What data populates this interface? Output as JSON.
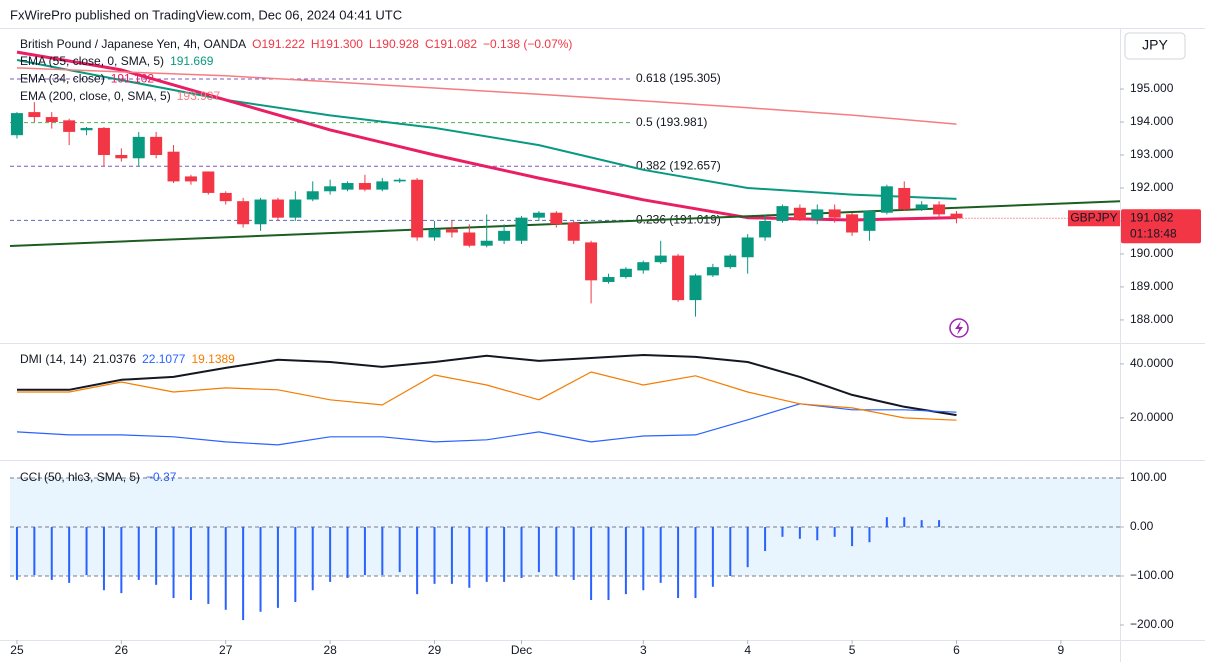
{
  "header": "FxWirePro published on TradingView.com, Dec 06, 2024 04:41 UTC",
  "chart_data": [
    {
      "type": "candlestick",
      "title": "British Pound / Japanese Yen, 4h, OANDA",
      "legend_ohlc": [
        "O191.222",
        "H191.300",
        "L190.928",
        "C191.082",
        "−0.138 (−0.07%)"
      ],
      "currency": "JPY",
      "symbol_tag": "GBPJPY",
      "price_tag": "191.082",
      "countdown": "01:18:48",
      "up_color": "#089981",
      "down_color": "#f23645",
      "xlim": [
        -0.4,
        63.4
      ],
      "ylim": [
        187.3,
        196.85
      ],
      "yticks": [
        {
          "value": 188,
          "label": "188.000"
        },
        {
          "value": 189,
          "label": "189.000"
        },
        {
          "value": 190,
          "label": "190.000"
        },
        {
          "value": 191,
          "label": "191.000"
        },
        {
          "value": 192,
          "label": "192.000"
        },
        {
          "value": 193,
          "label": "193.000"
        },
        {
          "value": 194,
          "label": "194.000"
        },
        {
          "value": 195,
          "label": "195.000"
        }
      ],
      "x": [
        0,
        1,
        2,
        3,
        4,
        5,
        6,
        7,
        8,
        9,
        10,
        11,
        12,
        13,
        14,
        15,
        16,
        17,
        18,
        19,
        20,
        21,
        22,
        23,
        24,
        25,
        26,
        27,
        28,
        29,
        30,
        31,
        32,
        33,
        34,
        35,
        36,
        37,
        38,
        39,
        40,
        41,
        42,
        43,
        44,
        45,
        46,
        47,
        48,
        49,
        50,
        51,
        52,
        53,
        54
      ],
      "open": [
        193.6,
        194.3,
        194.15,
        194.05,
        193.75,
        193.82,
        193.0,
        192.9,
        193.55,
        193.1,
        192.35,
        192.5,
        191.85,
        191.6,
        190.9,
        191.65,
        191.1,
        191.65,
        191.9,
        191.95,
        192.15,
        191.95,
        192.2,
        192.25,
        190.5,
        190.75,
        190.65,
        190.25,
        190.4,
        190.4,
        191.1,
        191.25,
        190.95,
        190.35,
        189.15,
        189.3,
        189.5,
        189.75,
        189.95,
        188.6,
        189.35,
        189.6,
        189.9,
        190.5,
        191.0,
        191.4,
        191.05,
        191.35,
        191.2,
        190.7,
        191.25,
        192.0,
        191.35,
        191.5,
        191.222
      ],
      "high": [
        194.3,
        194.6,
        194.3,
        194.1,
        193.85,
        193.85,
        193.2,
        193.7,
        193.7,
        193.3,
        192.4,
        192.5,
        191.9,
        191.7,
        191.7,
        191.7,
        191.9,
        192.2,
        192.25,
        192.2,
        192.4,
        192.3,
        192.3,
        192.3,
        191.0,
        191.0,
        190.9,
        191.2,
        190.9,
        191.15,
        191.3,
        191.3,
        191.0,
        190.4,
        189.4,
        189.6,
        189.8,
        190.4,
        190.0,
        189.4,
        189.7,
        190.0,
        190.6,
        191.2,
        191.5,
        191.5,
        191.5,
        191.5,
        191.25,
        191.3,
        192.1,
        192.2,
        191.6,
        191.6,
        191.3
      ],
      "low": [
        193.5,
        194.0,
        193.8,
        193.3,
        193.6,
        192.65,
        192.8,
        192.65,
        192.9,
        192.15,
        192.1,
        191.8,
        191.5,
        190.8,
        190.7,
        191.0,
        191.0,
        191.6,
        191.8,
        191.9,
        191.9,
        191.9,
        192.15,
        190.4,
        190.4,
        190.5,
        190.2,
        190.2,
        190.3,
        190.3,
        191.0,
        190.8,
        190.3,
        188.5,
        189.1,
        189.25,
        189.4,
        189.7,
        188.55,
        188.1,
        189.3,
        189.55,
        189.4,
        190.4,
        190.95,
        191.0,
        190.9,
        190.95,
        190.55,
        190.4,
        191.2,
        191.3,
        191.3,
        191.1,
        190.928
      ],
      "close": [
        194.27,
        194.15,
        194.0,
        193.7,
        193.82,
        193.0,
        192.9,
        193.55,
        193.0,
        192.2,
        192.2,
        191.85,
        191.6,
        190.9,
        191.65,
        191.1,
        191.65,
        191.9,
        192.05,
        192.15,
        191.95,
        192.2,
        192.25,
        190.5,
        190.75,
        190.65,
        190.25,
        190.4,
        190.7,
        191.1,
        191.25,
        190.9,
        190.4,
        189.2,
        189.3,
        189.55,
        189.75,
        189.95,
        188.6,
        189.35,
        189.6,
        189.95,
        190.5,
        191.0,
        191.45,
        191.05,
        191.35,
        191.1,
        190.65,
        191.3,
        192.05,
        191.35,
        191.5,
        191.2,
        191.082
      ],
      "lines": [
        {
          "name": "EMA (55, close, 0, SMA, 5)",
          "last_value_label": "191.669",
          "color": "#089981",
          "width": 2,
          "x": [
            0,
            6,
            12,
            18,
            24,
            30,
            36,
            42,
            48,
            54
          ],
          "values": [
            195.88,
            195.27,
            194.67,
            194.2,
            193.82,
            193.3,
            192.55,
            192.0,
            191.8,
            191.669
          ]
        },
        {
          "name": "EMA (34, close)",
          "last_value_label": "191.102",
          "color": "#e91e63",
          "width": 3,
          "x": [
            0,
            6,
            12,
            18,
            24,
            30,
            36,
            42,
            48,
            54
          ],
          "values": [
            196.12,
            195.58,
            194.67,
            193.76,
            193.0,
            192.3,
            191.64,
            191.1,
            191.03,
            191.102
          ]
        },
        {
          "name": "EMA (200, close, 0, SMA, 5)",
          "last_value_label": "193.937",
          "color": "#f77c80",
          "width": 1.5,
          "x": [
            0,
            6,
            12,
            18,
            24,
            30,
            36,
            42,
            48,
            54
          ],
          "values": [
            195.64,
            195.52,
            195.4,
            195.22,
            195.03,
            194.84,
            194.64,
            194.43,
            194.21,
            193.937
          ]
        }
      ],
      "trendline": {
        "color": "#1b5e20",
        "x": [
          -0.4,
          63.4
        ],
        "values": [
          190.24,
          191.6
        ]
      },
      "fib_levels": [
        {
          "value": 195.305,
          "label": "0.618 (195.305)",
          "color": "#7e57c2"
        },
        {
          "value": 193.981,
          "label": "0.5 (193.981)",
          "color": "#4caf50"
        },
        {
          "value": 192.657,
          "label": "0.382 (192.657)",
          "color": "#7e57c2"
        },
        {
          "value": 191.019,
          "label": "0.236 (191.019)",
          "color": "#5c6bc0"
        }
      ]
    },
    {
      "type": "line",
      "title": "DMI (14, 14)",
      "xlim": [
        -0.4,
        63.4
      ],
      "ylim": [
        4.4,
        47
      ],
      "yticks": [
        {
          "value": 20,
          "label": "20.0000"
        },
        {
          "value": 40,
          "label": "40.0000"
        }
      ],
      "x": [
        0,
        3,
        6,
        9,
        12,
        15,
        18,
        21,
        24,
        27,
        30,
        33,
        36,
        39,
        42,
        45,
        48,
        51,
        54
      ],
      "series": [
        {
          "color": "#131722",
          "value_label": "21.0376",
          "values": [
            30.4,
            30.4,
            34.1,
            35.2,
            38.5,
            41.5,
            40.7,
            38.9,
            40.7,
            43.0,
            41.1,
            42.2,
            43.3,
            42.6,
            40.7,
            35.2,
            28.5,
            24.1,
            21.0376
          ]
        },
        {
          "color": "#2962ff",
          "value_label": "22.1077",
          "values": [
            14.8,
            13.7,
            13.7,
            13.0,
            11.1,
            10.0,
            13.0,
            13.0,
            11.1,
            11.9,
            14.8,
            11.1,
            13.3,
            13.7,
            19.3,
            25.2,
            23.0,
            23.0,
            22.1077
          ]
        },
        {
          "color": "#f57c00",
          "value_label": "19.1389",
          "values": [
            29.6,
            29.6,
            33.3,
            29.6,
            31.1,
            30.4,
            26.7,
            24.8,
            35.9,
            32.2,
            26.7,
            37.0,
            32.2,
            35.6,
            29.6,
            25.2,
            23.7,
            20.0,
            19.1389
          ]
        }
      ]
    },
    {
      "type": "bar",
      "title": "CCI (50, hlc3, SMA, 5)",
      "value_label": "−0.37",
      "color": "#2962ff",
      "band": [
        -100,
        100
      ],
      "hlines": [
        100,
        0,
        -100
      ],
      "xlim": [
        -0.4,
        63.4
      ],
      "ylim": [
        -230.6,
        132.7
      ],
      "yticks": [
        {
          "value": 100,
          "label": "100.00"
        },
        {
          "value": 0,
          "label": "0.00"
        },
        {
          "value": -100,
          "label": "−100.00"
        },
        {
          "value": -200,
          "label": "−200.00"
        }
      ],
      "xticks": [
        {
          "value": 0,
          "label": "25"
        },
        {
          "value": 6,
          "label": "26"
        },
        {
          "value": 12,
          "label": "27"
        },
        {
          "value": 18,
          "label": "28"
        },
        {
          "value": 24,
          "label": "29"
        },
        {
          "value": 29,
          "label": "Dec"
        },
        {
          "value": 36,
          "label": "3"
        },
        {
          "value": 42,
          "label": "4"
        },
        {
          "value": 48,
          "label": "5"
        },
        {
          "value": 54,
          "label": "6"
        },
        {
          "value": 60,
          "label": "9"
        }
      ],
      "x": [
        0,
        1,
        2,
        3,
        4,
        5,
        6,
        7,
        8,
        9,
        10,
        11,
        12,
        13,
        14,
        15,
        16,
        17,
        18,
        19,
        20,
        21,
        22,
        23,
        24,
        25,
        26,
        27,
        28,
        29,
        30,
        31,
        32,
        33,
        34,
        35,
        36,
        37,
        38,
        39,
        40,
        41,
        42,
        43,
        44,
        45,
        46,
        47,
        48,
        49,
        50,
        51,
        52,
        53,
        54
      ],
      "values": [
        -108,
        -98,
        -108,
        -114,
        -98,
        -129,
        -135,
        -108,
        -118,
        -145,
        -149,
        -157,
        -169,
        -190,
        -173,
        -165,
        -153,
        -129,
        -112,
        -104,
        -98,
        -98,
        -92,
        -137,
        -116,
        -116,
        -124,
        -112,
        -112,
        -104,
        -92,
        -100,
        -108,
        -149,
        -149,
        -137,
        -129,
        -114,
        -145,
        -145,
        -122,
        -100,
        -82,
        -49,
        -20,
        -24,
        -27,
        -20,
        -39,
        -31,
        20,
        20,
        14,
        14,
        -0.37
      ]
    }
  ]
}
